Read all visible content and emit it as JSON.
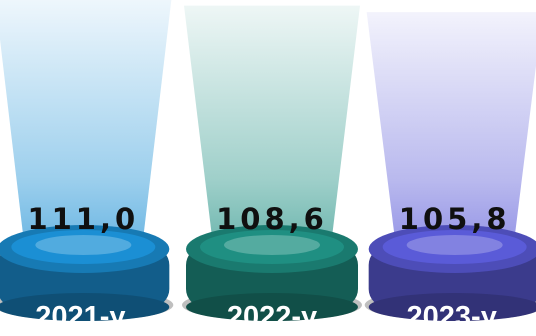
{
  "chart_data": {
    "type": "bar",
    "title": "",
    "xlabel": "",
    "ylabel": "",
    "categories": [
      "2021-y.",
      "2022-y",
      "2023-y."
    ],
    "values": [
      111.0,
      108.6,
      105.8
    ],
    "value_labels": [
      "111,0",
      "108,6",
      "105,8"
    ],
    "colors": [
      "#1b8fd4",
      "#1f8f82",
      "#5a5bd8"
    ],
    "grid": false,
    "legend": "none"
  }
}
